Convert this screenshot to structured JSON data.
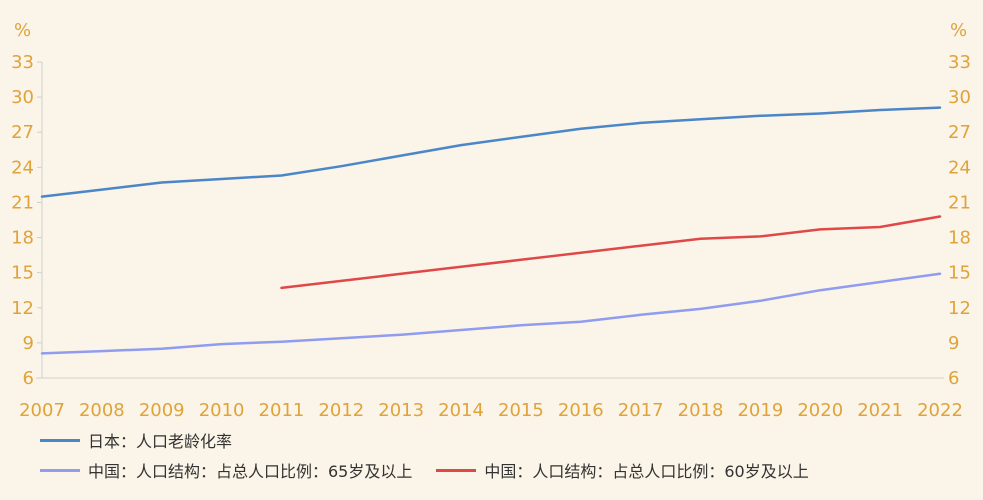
{
  "chart_data": {
    "type": "line",
    "y_unit_left": "%",
    "y_unit_right": "%",
    "x": [
      "2007",
      "2008",
      "2009",
      "2010",
      "2011",
      "2012",
      "2013",
      "2014",
      "2015",
      "2016",
      "2017",
      "2018",
      "2019",
      "2020",
      "2021",
      "2022"
    ],
    "y_ticks": [
      6,
      9,
      12,
      15,
      18,
      21,
      24,
      27,
      30,
      33
    ],
    "ylim": [
      6,
      33
    ],
    "grid": false,
    "legend_position": "bottom-left",
    "series": [
      {
        "name": "日本：人口老龄化率",
        "color": "#4a86c8",
        "values": [
          21.5,
          22.1,
          22.7,
          23.0,
          23.3,
          24.1,
          25.0,
          25.9,
          26.6,
          27.3,
          27.8,
          28.1,
          28.4,
          28.6,
          28.9,
          29.1
        ]
      },
      {
        "name": "中国：人口结构：占总人口比例：65岁及以上",
        "color": "#8f9cf0",
        "values": [
          8.1,
          8.3,
          8.5,
          8.9,
          9.1,
          9.4,
          9.7,
          10.1,
          10.5,
          10.8,
          11.4,
          11.9,
          12.6,
          13.5,
          14.2,
          14.9
        ]
      },
      {
        "name": "中国：人口结构：占总人口比例：60岁及以上",
        "color": "#e04848",
        "values": [
          null,
          null,
          null,
          null,
          13.7,
          14.3,
          14.9,
          15.5,
          16.1,
          16.7,
          17.3,
          17.9,
          18.1,
          18.7,
          18.9,
          19.8
        ]
      }
    ]
  }
}
